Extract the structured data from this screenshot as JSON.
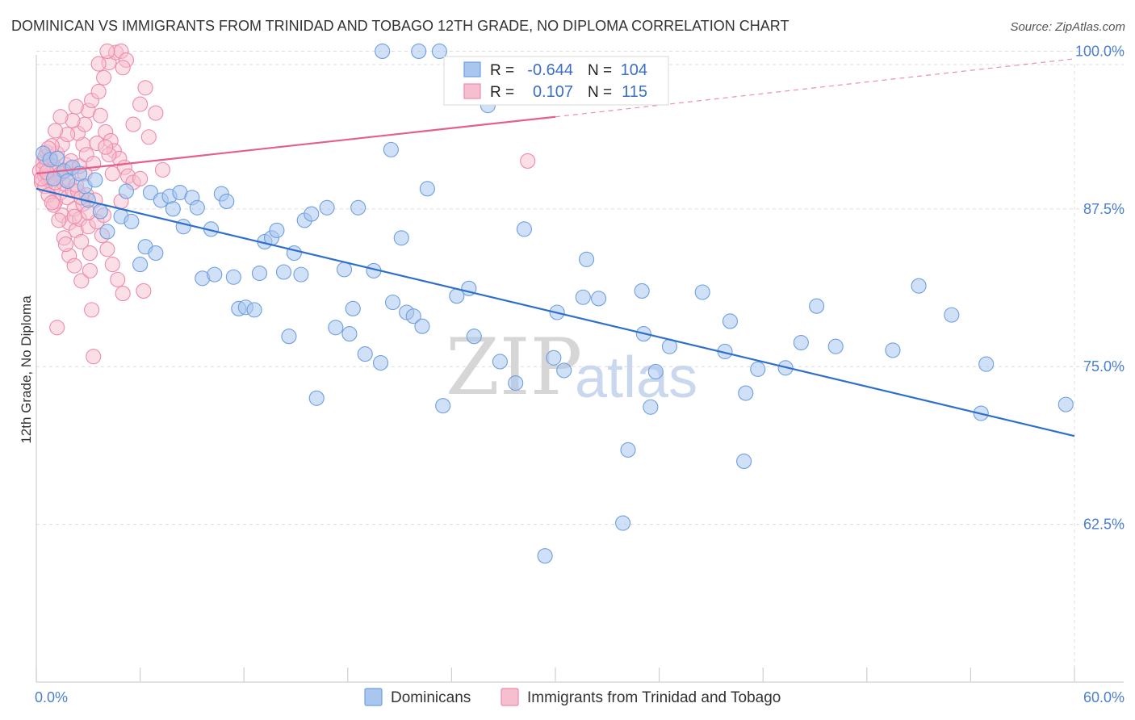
{
  "title": "DOMINICAN VS IMMIGRANTS FROM TRINIDAD AND TOBAGO 12TH GRADE, NO DIPLOMA CORRELATION CHART",
  "source": "Source: ZipAtlas.com",
  "watermark": {
    "zip": "ZIP",
    "atlas": "atlas"
  },
  "colors": {
    "blue_fill": "#a9c6ee",
    "blue_stroke": "#6f9fe0",
    "blue_line": "#2f6fcc",
    "pink_fill": "#f6bfd0",
    "pink_stroke": "#ee8aab",
    "pink_line": "#e35f8d",
    "grid": "#dcdcdc",
    "tick_text": "#4a7fd0"
  },
  "stats_legend": {
    "rows": [
      {
        "r_label": "R =",
        "r_value": "-0.644",
        "n_label": "N =",
        "n_value": "104"
      },
      {
        "r_label": "R =",
        "r_value": "0.107",
        "n_label": "N =",
        "n_value": "115"
      }
    ]
  },
  "chart_data": {
    "type": "scatter",
    "title": "DOMINICAN VS IMMIGRANTS FROM TRINIDAD AND TOBAGO 12TH GRADE, NO DIPLOMA CORRELATION CHART",
    "xlabel": "",
    "ylabel": "12th Grade, No Diploma",
    "xlim": [
      0,
      60
    ],
    "ylim": [
      50,
      101.5
    ],
    "x_tick_labels": [
      "0.0%",
      "60.0%"
    ],
    "y_ticks": [
      62.5,
      75.0,
      87.5,
      100.0
    ],
    "y_tick_labels": [
      "62.5%",
      "75.0%",
      "87.5%",
      "100.0%"
    ],
    "legend_position": "bottom",
    "series": [
      {
        "name": "Dominicans",
        "r": -0.644,
        "n": 104,
        "trend": {
          "x0": 0,
          "y0": 89.1,
          "x1": 60,
          "y1": 69.5
        },
        "points": [
          [
            0.4,
            91.9
          ],
          [
            0.8,
            91.4
          ],
          [
            1.2,
            91.5
          ],
          [
            1.6,
            90.5
          ],
          [
            2.1,
            90.8
          ],
          [
            2.5,
            90.3
          ],
          [
            1.8,
            89.7
          ],
          [
            2.8,
            89.3
          ],
          [
            3.4,
            89.8
          ],
          [
            3.0,
            88.2
          ],
          [
            3.7,
            87.3
          ],
          [
            4.1,
            85.7
          ],
          [
            4.9,
            86.9
          ],
          [
            5.2,
            88.9
          ],
          [
            5.5,
            86.5
          ],
          [
            6.3,
            84.5
          ],
          [
            6.6,
            88.8
          ],
          [
            6.9,
            84.0
          ],
          [
            7.2,
            88.2
          ],
          [
            7.7,
            88.5
          ],
          [
            7.9,
            87.5
          ],
          [
            8.3,
            88.8
          ],
          [
            8.5,
            86.1
          ],
          [
            9.0,
            88.4
          ],
          [
            9.3,
            87.6
          ],
          [
            9.6,
            82.0
          ],
          [
            10.1,
            85.9
          ],
          [
            10.3,
            82.3
          ],
          [
            10.7,
            88.7
          ],
          [
            11.0,
            88.1
          ],
          [
            11.4,
            82.1
          ],
          [
            11.7,
            79.6
          ],
          [
            12.1,
            79.7
          ],
          [
            12.6,
            79.5
          ],
          [
            12.9,
            82.4
          ],
          [
            13.2,
            84.9
          ],
          [
            13.6,
            85.2
          ],
          [
            13.9,
            85.8
          ],
          [
            14.3,
            82.5
          ],
          [
            14.6,
            77.4
          ],
          [
            14.9,
            84.0
          ],
          [
            15.3,
            82.3
          ],
          [
            15.5,
            86.6
          ],
          [
            15.9,
            87.1
          ],
          [
            16.2,
            72.5
          ],
          [
            16.8,
            87.6
          ],
          [
            17.3,
            78.1
          ],
          [
            17.8,
            82.7
          ],
          [
            18.1,
            77.6
          ],
          [
            18.3,
            79.6
          ],
          [
            18.6,
            87.6
          ],
          [
            19.0,
            76.0
          ],
          [
            19.5,
            82.6
          ],
          [
            19.9,
            75.3
          ],
          [
            20.5,
            92.2
          ],
          [
            20.6,
            80.1
          ],
          [
            21.1,
            85.2
          ],
          [
            21.4,
            79.3
          ],
          [
            21.8,
            79.0
          ],
          [
            22.3,
            78.2
          ],
          [
            22.6,
            89.1
          ],
          [
            23.5,
            71.9
          ],
          [
            24.3,
            80.6
          ],
          [
            25.0,
            81.2
          ],
          [
            25.3,
            77.4
          ],
          [
            26.1,
            95.7
          ],
          [
            26.8,
            75.4
          ],
          [
            27.7,
            73.7
          ],
          [
            28.2,
            85.9
          ],
          [
            29.4,
            60.0
          ],
          [
            29.9,
            75.7
          ],
          [
            30.1,
            79.3
          ],
          [
            30.5,
            74.7
          ],
          [
            31.6,
            80.5
          ],
          [
            31.8,
            83.5
          ],
          [
            32.5,
            80.4
          ],
          [
            33.9,
            62.6
          ],
          [
            34.2,
            68.4
          ],
          [
            35.1,
            77.6
          ],
          [
            35.0,
            81.0
          ],
          [
            35.5,
            71.8
          ],
          [
            35.8,
            74.6
          ],
          [
            36.6,
            76.6
          ],
          [
            38.5,
            80.9
          ],
          [
            39.8,
            76.2
          ],
          [
            40.1,
            78.6
          ],
          [
            40.9,
            67.5
          ],
          [
            41.0,
            72.9
          ],
          [
            41.7,
            74.8
          ],
          [
            43.3,
            74.9
          ],
          [
            44.2,
            76.9
          ],
          [
            45.1,
            79.8
          ],
          [
            46.2,
            76.6
          ],
          [
            49.5,
            76.3
          ],
          [
            51.0,
            81.4
          ],
          [
            52.9,
            79.1
          ],
          [
            54.6,
            71.3
          ],
          [
            54.9,
            75.2
          ],
          [
            59.5,
            72.0
          ],
          [
            22.1,
            100.0
          ],
          [
            23.3,
            100.0
          ],
          [
            20.0,
            100.0
          ],
          [
            1.0,
            89.9
          ],
          [
            6.0,
            83.1
          ]
        ]
      },
      {
        "name": "Immigrants from Trinidad and Tobago",
        "r": 0.107,
        "n": 115,
        "trend": {
          "x0": 0,
          "y0": 90.3,
          "x1": 30,
          "y1": 94.8,
          "dashed_to_x": 60,
          "dashed_to_y": 99.4
        },
        "points": [
          [
            0.2,
            90.5
          ],
          [
            0.3,
            89.6
          ],
          [
            0.4,
            91.2
          ],
          [
            0.5,
            90.1
          ],
          [
            0.6,
            92.0
          ],
          [
            0.7,
            89.8
          ],
          [
            0.8,
            91.6
          ],
          [
            0.9,
            90.4
          ],
          [
            1.0,
            89.2
          ],
          [
            1.1,
            88.1
          ],
          [
            1.2,
            91.9
          ],
          [
            1.3,
            90.2
          ],
          [
            1.4,
            88.8
          ],
          [
            1.5,
            87.0
          ],
          [
            1.6,
            89.5
          ],
          [
            1.7,
            91.0
          ],
          [
            1.8,
            88.4
          ],
          [
            1.9,
            86.4
          ],
          [
            2.0,
            90.7
          ],
          [
            2.1,
            89.0
          ],
          [
            2.2,
            87.5
          ],
          [
            2.3,
            85.8
          ],
          [
            2.4,
            88.9
          ],
          [
            2.5,
            86.7
          ],
          [
            2.6,
            84.9
          ],
          [
            2.7,
            92.6
          ],
          [
            2.8,
            90.3
          ],
          [
            2.9,
            88.6
          ],
          [
            3.0,
            86.1
          ],
          [
            3.1,
            84.0
          ],
          [
            0.5,
            89.3
          ],
          [
            0.7,
            88.6
          ],
          [
            1.0,
            87.8
          ],
          [
            1.3,
            86.6
          ],
          [
            1.6,
            85.2
          ],
          [
            1.9,
            83.8
          ],
          [
            2.2,
            83.0
          ],
          [
            2.6,
            81.8
          ],
          [
            3.2,
            79.5
          ],
          [
            1.2,
            78.1
          ],
          [
            3.3,
            75.8
          ],
          [
            2.4,
            93.5
          ],
          [
            2.8,
            94.2
          ],
          [
            3.0,
            95.3
          ],
          [
            3.2,
            96.1
          ],
          [
            3.6,
            96.8
          ],
          [
            3.9,
            97.9
          ],
          [
            4.2,
            99.1
          ],
          [
            4.6,
            99.9
          ],
          [
            4.9,
            100.0
          ],
          [
            3.7,
            94.9
          ],
          [
            4.0,
            93.6
          ],
          [
            4.3,
            92.9
          ],
          [
            4.5,
            92.1
          ],
          [
            4.8,
            91.5
          ],
          [
            5.1,
            90.8
          ],
          [
            5.3,
            90.1
          ],
          [
            5.6,
            89.6
          ],
          [
            6.0,
            95.8
          ],
          [
            6.3,
            97.1
          ],
          [
            6.5,
            93.2
          ],
          [
            6.9,
            95.1
          ],
          [
            7.3,
            90.6
          ],
          [
            3.5,
            86.5
          ],
          [
            3.8,
            85.4
          ],
          [
            4.1,
            84.3
          ],
          [
            4.4,
            83.1
          ],
          [
            4.7,
            81.9
          ],
          [
            5.0,
            80.8
          ],
          [
            3.4,
            88.2
          ],
          [
            3.9,
            87.0
          ],
          [
            4.2,
            91.8
          ],
          [
            1.5,
            92.6
          ],
          [
            1.8,
            93.4
          ],
          [
            2.1,
            94.5
          ],
          [
            2.3,
            95.6
          ],
          [
            0.9,
            92.5
          ],
          [
            1.1,
            93.7
          ],
          [
            1.4,
            94.8
          ],
          [
            0.6,
            91.0
          ],
          [
            0.8,
            90.0
          ],
          [
            1.0,
            90.9
          ],
          [
            1.2,
            90.6
          ],
          [
            0.4,
            90.7
          ],
          [
            0.3,
            89.9
          ],
          [
            0.5,
            91.6
          ],
          [
            0.7,
            92.3
          ],
          [
            2.0,
            91.3
          ],
          [
            2.5,
            90.9
          ],
          [
            2.9,
            91.8
          ],
          [
            3.5,
            92.7
          ],
          [
            4.0,
            92.4
          ],
          [
            5.2,
            99.3
          ],
          [
            4.1,
            100.0
          ],
          [
            5.0,
            98.7
          ],
          [
            3.6,
            99.0
          ],
          [
            2.7,
            87.9
          ],
          [
            3.0,
            87.2
          ],
          [
            1.9,
            89.8
          ],
          [
            2.3,
            89.4
          ],
          [
            6.2,
            81.0
          ],
          [
            28.4,
            91.3
          ],
          [
            3.1,
            82.6
          ],
          [
            2.2,
            86.9
          ],
          [
            1.7,
            84.7
          ],
          [
            0.9,
            88.0
          ],
          [
            1.4,
            90.3
          ],
          [
            0.6,
            90.4
          ],
          [
            1.1,
            89.6
          ],
          [
            2.6,
            88.4
          ],
          [
            3.3,
            91.1
          ],
          [
            4.4,
            90.3
          ],
          [
            5.6,
            94.2
          ],
          [
            6.0,
            89.9
          ],
          [
            4.9,
            88.1
          ]
        ]
      }
    ]
  },
  "legend": {
    "items": [
      {
        "label": "Dominicans"
      },
      {
        "label": "Immigrants from Trinidad and Tobago"
      }
    ]
  }
}
